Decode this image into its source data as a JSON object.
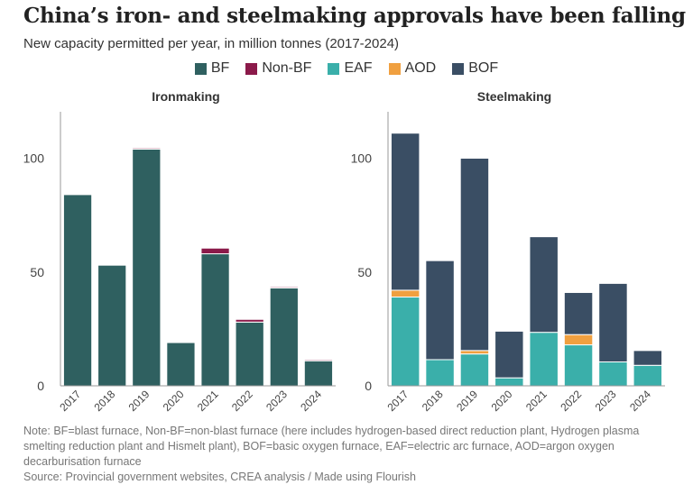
{
  "title": "China’s iron- and steelmaking approvals have been falling",
  "subtitle": "New capacity permitted per year, in million tonnes (2017-2024)",
  "legend": [
    {
      "name": "BF",
      "color": "#2f6060"
    },
    {
      "name": "Non-BF",
      "color": "#8b1a4a"
    },
    {
      "name": "EAF",
      "color": "#3aafaa"
    },
    {
      "name": "AOD",
      "color": "#f0a040"
    },
    {
      "name": "BOF",
      "color": "#3a4e64"
    }
  ],
  "chart_data": [
    {
      "type": "bar",
      "stacked": true,
      "title": "Ironmaking",
      "categories": [
        "2017",
        "2018",
        "2019",
        "2020",
        "2021",
        "2022",
        "2023",
        "2024"
      ],
      "ylim": [
        0,
        120
      ],
      "yticks": [
        "0",
        "50",
        "100"
      ],
      "series": [
        {
          "name": "BF",
          "values": [
            84,
            53,
            104,
            19,
            58,
            28,
            43,
            11
          ],
          "color": "#2f6060"
        },
        {
          "name": "Non-BF",
          "values": [
            0,
            0,
            0.5,
            0,
            2.5,
            1.2,
            0.5,
            0.5
          ],
          "color": "#8b1a4a"
        }
      ]
    },
    {
      "type": "bar",
      "stacked": true,
      "title": "Steelmaking",
      "categories": [
        "2017",
        "2018",
        "2019",
        "2020",
        "2021",
        "2022",
        "2023",
        "2024"
      ],
      "ylim": [
        0,
        120
      ],
      "yticks": [
        "0",
        "50",
        "100"
      ],
      "series": [
        {
          "name": "EAF",
          "values": [
            39,
            11.5,
            14,
            3.5,
            23.5,
            18,
            10.5,
            9
          ],
          "color": "#3aafaa"
        },
        {
          "name": "AOD",
          "values": [
            3,
            0,
            1.5,
            0,
            0,
            4.5,
            0,
            0
          ],
          "color": "#f0a040"
        },
        {
          "name": "BOF",
          "values": [
            69,
            43.5,
            84.5,
            20.5,
            42,
            18.5,
            34.5,
            6.5
          ],
          "color": "#3a4e64"
        }
      ]
    }
  ],
  "footer": {
    "note": "Note: BF=blast furnace, Non-BF=non-blast furnace (here includes hydrogen-based direct reduction plant, Hydrogen plasma smelting reduction plant and Hismelt plant), BOF=basic oxygen furnace, EAF=electric arc furnace, AOD=argon oxygen decarburisation furnace",
    "source": "Source: Provincial government websites, CREA analysis / Made using Flourish"
  }
}
